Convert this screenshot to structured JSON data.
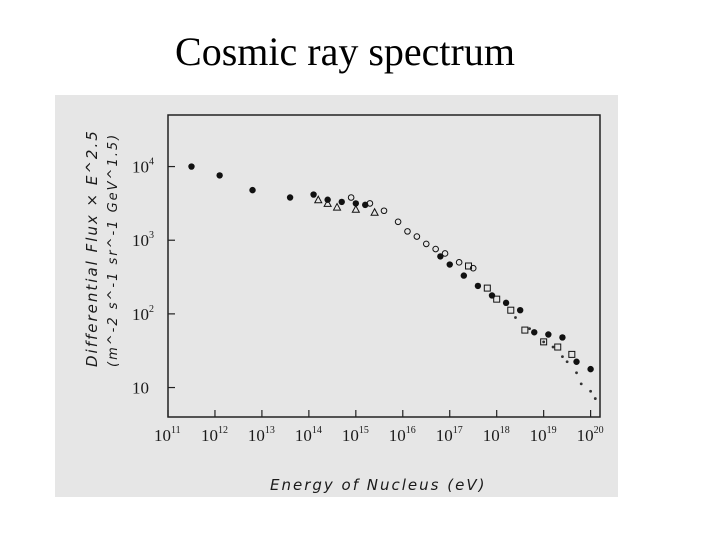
{
  "slide": {
    "title": "Cosmic ray spectrum"
  },
  "chart_data": {
    "type": "scatter",
    "title": "Cosmic ray spectrum",
    "xlabel": "Energy of Nucleus (eV)",
    "ylabel": "Differential Flux × E^2.5",
    "ylabel_units": "(m^-2 s^-1 sr^-1 GeV^1.5)",
    "x_scale": "log",
    "y_scale": "log",
    "xlim_log10": [
      11,
      20.2
    ],
    "ylim_log10": [
      0.6,
      4.7
    ],
    "x_ticks": [
      {
        "base": "10",
        "exp": "11"
      },
      {
        "base": "10",
        "exp": "12"
      },
      {
        "base": "10",
        "exp": "13"
      },
      {
        "base": "10",
        "exp": "14"
      },
      {
        "base": "10",
        "exp": "15"
      },
      {
        "base": "10",
        "exp": "16"
      },
      {
        "base": "10",
        "exp": "17"
      },
      {
        "base": "10",
        "exp": "18"
      },
      {
        "base": "10",
        "exp": "19"
      },
      {
        "base": "10",
        "exp": "20"
      }
    ],
    "y_ticks": [
      {
        "base": "10",
        "exp": "4"
      },
      {
        "base": "10",
        "exp": "3"
      },
      {
        "base": "10",
        "exp": "2"
      },
      {
        "base": "10",
        "exp": ""
      }
    ],
    "series": [
      {
        "name": "filled points",
        "marker": "filled-circle",
        "log10_x": [
          11.5,
          12.1,
          12.8,
          13.6,
          14.1,
          14.4,
          14.7,
          15.0,
          15.2,
          16.8,
          17.0,
          17.3,
          17.6,
          17.9,
          18.2,
          18.5,
          18.8,
          19.1,
          19.4,
          19.7,
          20.0
        ],
        "log10_y": [
          4.0,
          3.88,
          3.68,
          3.58,
          3.62,
          3.55,
          3.52,
          3.5,
          3.48,
          2.78,
          2.67,
          2.52,
          2.38,
          2.25,
          2.15,
          2.05,
          1.75,
          1.72,
          1.68,
          1.35,
          1.25
        ]
      },
      {
        "name": "open circles",
        "marker": "open-circle",
        "log10_x": [
          14.9,
          15.3,
          15.6,
          15.9,
          16.1,
          16.3,
          16.5,
          16.7,
          16.9,
          17.2,
          17.5
        ],
        "log10_y": [
          3.58,
          3.5,
          3.4,
          3.25,
          3.12,
          3.05,
          2.95,
          2.88,
          2.82,
          2.7,
          2.62
        ]
      },
      {
        "name": "triangles",
        "marker": "open-triangle",
        "log10_x": [
          14.2,
          14.4,
          14.6,
          15.0,
          15.4
        ],
        "log10_y": [
          3.55,
          3.5,
          3.45,
          3.42,
          3.38
        ]
      },
      {
        "name": "squares",
        "marker": "open-square",
        "log10_x": [
          17.4,
          17.8,
          18.0,
          18.3,
          18.6,
          19.0,
          19.3,
          19.6
        ],
        "log10_y": [
          2.65,
          2.35,
          2.2,
          2.05,
          1.78,
          1.62,
          1.55,
          1.45
        ]
      },
      {
        "name": "dots",
        "marker": "dot",
        "log10_x": [
          18.4,
          18.7,
          19.0,
          19.2,
          19.4,
          19.5,
          19.7,
          19.8,
          20.0,
          20.1
        ],
        "log10_y": [
          1.95,
          1.8,
          1.62,
          1.55,
          1.42,
          1.35,
          1.2,
          1.05,
          0.95,
          0.85
        ]
      }
    ]
  }
}
